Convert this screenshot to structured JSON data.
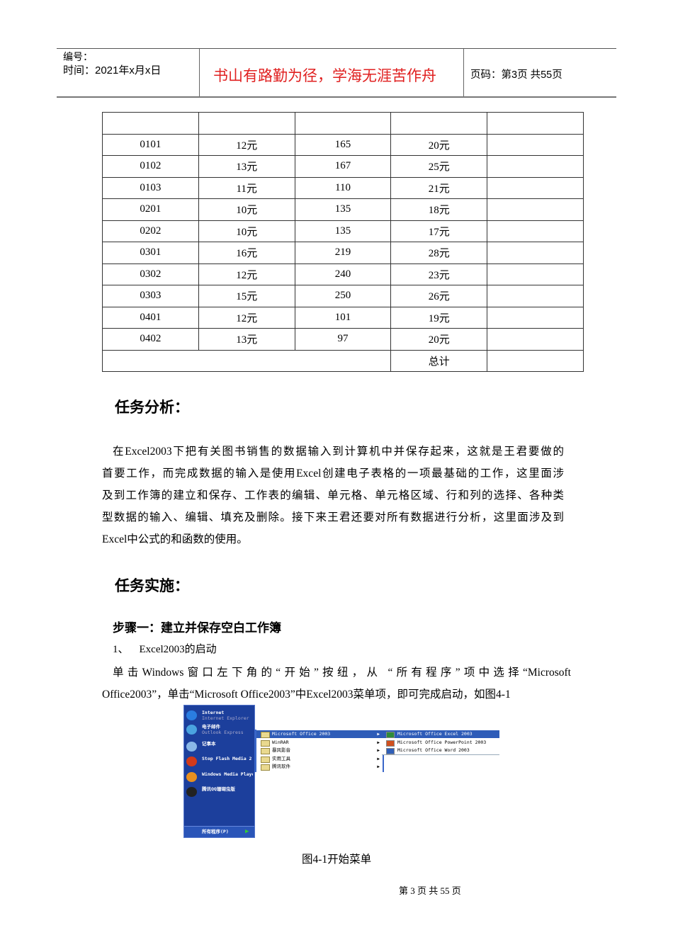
{
  "header": {
    "number_label": "编号：",
    "date_label": "时间：2021年x月x日",
    "motto": "书山有路勤为径，学海无涯苦作舟",
    "page_label": "页码：第3页  共55页",
    "motto_color": "#e02020"
  },
  "table": {
    "header": [
      "",
      "",
      "",
      "",
      ""
    ],
    "rows": [
      [
        "0101",
        "12元",
        "165",
        "20元",
        ""
      ],
      [
        "0102",
        "13元",
        "167",
        "25元",
        ""
      ],
      [
        "0103",
        "11元",
        "110",
        "21元",
        ""
      ],
      [
        "0201",
        "10元",
        "135",
        "18元",
        ""
      ],
      [
        "0202",
        "10元",
        "135",
        "17元",
        ""
      ],
      [
        "0301",
        "16元",
        "219",
        "28元",
        ""
      ],
      [
        "0302",
        "12元",
        "240",
        "23元",
        ""
      ],
      [
        "0303",
        "15元",
        "250",
        "26元",
        ""
      ],
      [
        "0401",
        "12元",
        "101",
        "19元",
        ""
      ],
      [
        "0402",
        "13元",
        "97",
        "20元",
        ""
      ]
    ],
    "total_label": "总计"
  },
  "analysis": {
    "title": "任务分析：",
    "lines": [
      "在Excel2003下把有关图书销售的数据输入到计算机中并保存起来，这就是王君要做的",
      "首要工作，而完成数据的输入是使用Excel创建电子表格的一项最基础的工作，这里面涉",
      "及到工作簿的建立和保存、工作表的编辑、单元格、单元格区域、行和列的选择、各种类",
      "型数据的输入、编辑、填充及删除。接下来王君还要对所有数据进行分析，这里面涉及到",
      "Excel中公式的和函数的使用。"
    ]
  },
  "implementation": {
    "title": "任务实施：",
    "step1": "步骤一：建立并保存空白工作簿",
    "sub1": "1、    Excel2003的启动",
    "lines": [
      "单击Windows窗口左下角的“开始”按纽，从  “所有程序”项中选择“Microsoft",
      "Office2003”，单击“Microsoft Office2003”中Excel2003菜单项，即可完成启动，如图4-1"
    ]
  },
  "figure": {
    "left_items": [
      {
        "title": "Internet",
        "sub": "Internet Explorer",
        "icon": "ie-icon"
      },
      {
        "title": "电子邮件",
        "sub": "Outlook Express",
        "icon": "mail-icon"
      },
      {
        "title": "记事本",
        "sub": "",
        "icon": "notepad-icon"
      },
      {
        "title": "Stop Flash Media 2",
        "sub": "",
        "icon": "flash-icon"
      },
      {
        "title": "Windows Media Player",
        "sub": "",
        "icon": "media-player-icon"
      },
      {
        "title": "腾讯QQ珊瑚虫版",
        "sub": "",
        "icon": "qq-icon"
      }
    ],
    "all_programs": "所有程序(P)",
    "programs": [
      "Microsoft Office 2003",
      "WinRAR",
      "暴风影音",
      "实用工具",
      "腾讯软件"
    ],
    "office": [
      "Microsoft Office Excel 2003",
      "Microsoft Office PowerPoint 2003",
      "Microsoft Office Word 2003"
    ],
    "caption": "图4-1开始菜单"
  },
  "footer": "第 3 页 共 55 页"
}
